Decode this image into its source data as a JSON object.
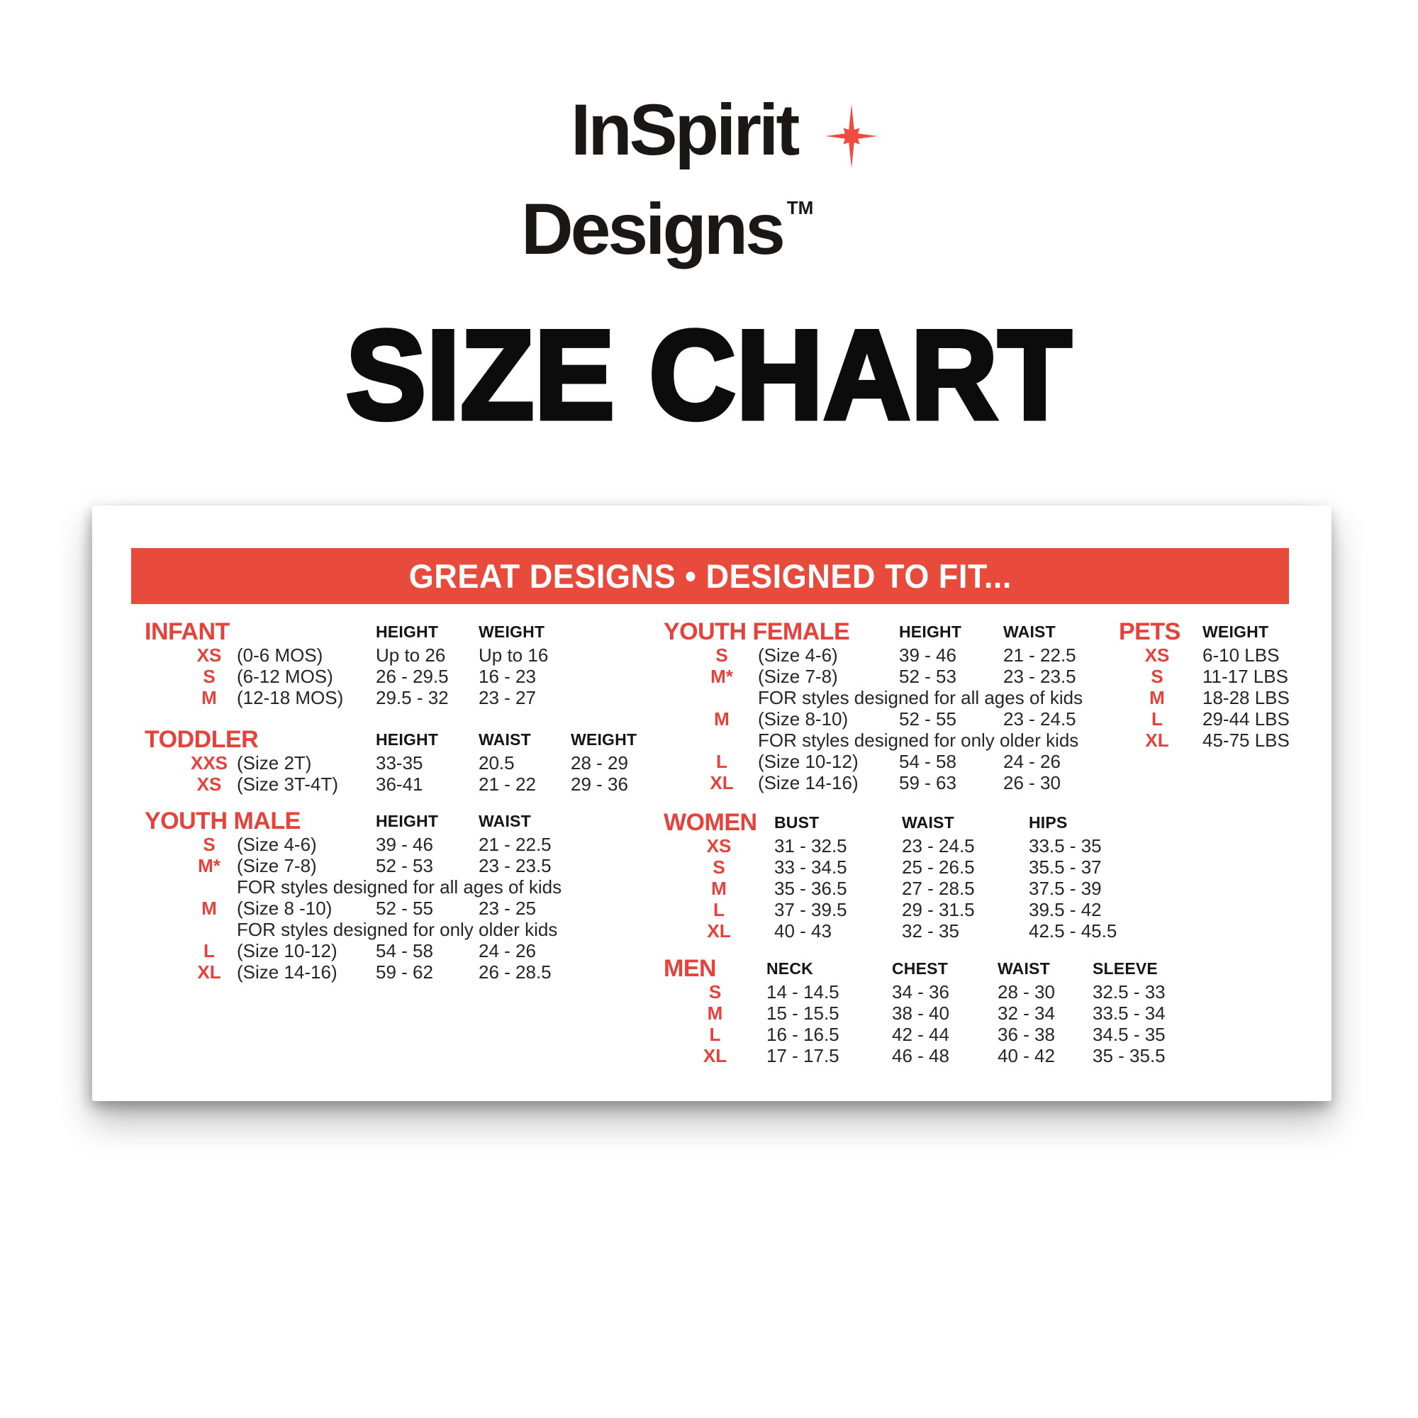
{
  "logo": {
    "line1": "InSpirit",
    "line2": "Designs",
    "trademark": "TM",
    "star_icon": "sparkle-star",
    "star_color": "#EF4C41",
    "text_color": "#1A1715"
  },
  "page_title": "SIZE CHART",
  "banner": {
    "text": "GREAT DESIGNS • DESIGNED TO FIT...",
    "bg_color": "#E84A3C",
    "text_color": "#FFFFFF"
  },
  "accent_red": "#E6423B",
  "sections": {
    "infant": {
      "title": "INFANT",
      "columns": [
        "HEIGHT",
        "WEIGHT"
      ],
      "rows": [
        {
          "size": "XS",
          "desc": "(0-6 MOS)",
          "values": [
            "Up to 26",
            "Up to 16"
          ]
        },
        {
          "size": "S",
          "desc": "(6-12 MOS)",
          "values": [
            "26 - 29.5",
            "16 - 23"
          ]
        },
        {
          "size": "M",
          "desc": "(12-18 MOS)",
          "values": [
            "29.5 - 32",
            "23 - 27"
          ]
        }
      ]
    },
    "toddler": {
      "title": "TODDLER",
      "columns": [
        "HEIGHT",
        "WAIST",
        "WEIGHT"
      ],
      "rows": [
        {
          "size": "XXS",
          "desc": "(Size 2T)",
          "values": [
            "33-35",
            "20.5",
            "28 - 29"
          ]
        },
        {
          "size": "XS",
          "desc": "(Size 3T-4T)",
          "values": [
            "36-41",
            "21 - 22",
            "29 - 36"
          ]
        }
      ]
    },
    "youth_male": {
      "title": "YOUTH MALE",
      "columns": [
        "HEIGHT",
        "WAIST"
      ],
      "rows": [
        {
          "size": "S",
          "desc": "(Size 4-6)",
          "values": [
            "39 - 46",
            "21 - 22.5"
          ]
        },
        {
          "size": "M*",
          "desc": "(Size 7-8)",
          "values": [
            "52 - 53",
            "23 - 23.5"
          ]
        },
        {
          "note": "FOR styles designed for all ages of kids"
        },
        {
          "size": "M",
          "desc": "(Size 8 -10)",
          "values": [
            "52 - 55",
            "23 - 25"
          ]
        },
        {
          "note": "FOR styles designed for only older kids"
        },
        {
          "size": "L",
          "desc": "(Size 10-12)",
          "values": [
            "54 - 58",
            "24 - 26"
          ]
        },
        {
          "size": "XL",
          "desc": "(Size 14-16)",
          "values": [
            "59 - 62",
            "26 - 28.5"
          ]
        }
      ]
    },
    "youth_female": {
      "title": "YOUTH FEMALE",
      "columns": [
        "HEIGHT",
        "WAIST"
      ],
      "rows": [
        {
          "size": "S",
          "desc": "(Size 4-6)",
          "values": [
            "39 - 46",
            "21 - 22.5"
          ]
        },
        {
          "size": "M*",
          "desc": "(Size 7-8)",
          "values": [
            "52 - 53",
            "23 - 23.5"
          ]
        },
        {
          "note": "FOR styles designed for all ages of kids"
        },
        {
          "size": "M",
          "desc": "(Size 8-10)",
          "values": [
            "52 - 55",
            "23 - 24.5"
          ]
        },
        {
          "note": "FOR styles designed for only older kids"
        },
        {
          "size": "L",
          "desc": "(Size 10-12)",
          "values": [
            "54 - 58",
            "24 - 26"
          ]
        },
        {
          "size": "XL",
          "desc": "(Size 14-16)",
          "values": [
            "59 - 63",
            "26 - 30"
          ]
        }
      ]
    },
    "women": {
      "title": "WOMEN",
      "columns": [
        "BUST",
        "WAIST",
        "HIPS"
      ],
      "rows": [
        {
          "size": "XS",
          "values": [
            "31 - 32.5",
            "23 - 24.5",
            "33.5 - 35"
          ]
        },
        {
          "size": "S",
          "values": [
            "33 - 34.5",
            "25 - 26.5",
            "35.5 - 37"
          ]
        },
        {
          "size": "M",
          "values": [
            "35 - 36.5",
            "27 - 28.5",
            "37.5 - 39"
          ]
        },
        {
          "size": "L",
          "values": [
            "37 - 39.5",
            "29 - 31.5",
            "39.5 - 42"
          ]
        },
        {
          "size": "XL",
          "values": [
            "40 - 43",
            "32 - 35",
            "42.5 - 45.5"
          ]
        }
      ]
    },
    "men": {
      "title": "MEN",
      "columns": [
        "NECK",
        "CHEST",
        "WAIST",
        "SLEEVE"
      ],
      "rows": [
        {
          "size": "S",
          "values": [
            "14 - 14.5",
            "34 - 36",
            "28 - 30",
            "32.5 - 33"
          ]
        },
        {
          "size": "M",
          "values": [
            "15 - 15.5",
            "38 - 40",
            "32 - 34",
            "33.5 - 34"
          ]
        },
        {
          "size": "L",
          "values": [
            "16 - 16.5",
            "42 - 44",
            "36 - 38",
            "34.5 - 35"
          ]
        },
        {
          "size": "XL",
          "values": [
            "17 - 17.5",
            "46 - 48",
            "40 - 42",
            "35 - 35.5"
          ]
        }
      ]
    },
    "pets": {
      "title": "PETS",
      "columns": [
        "WEIGHT"
      ],
      "rows": [
        {
          "size": "XS",
          "values": [
            "6-10 LBS"
          ]
        },
        {
          "size": "S",
          "values": [
            "11-17 LBS"
          ]
        },
        {
          "size": "M",
          "values": [
            "18-28 LBS"
          ]
        },
        {
          "size": "L",
          "values": [
            "29-44 LBS"
          ]
        },
        {
          "size": "XL",
          "values": [
            "45-75 LBS"
          ]
        }
      ]
    }
  }
}
